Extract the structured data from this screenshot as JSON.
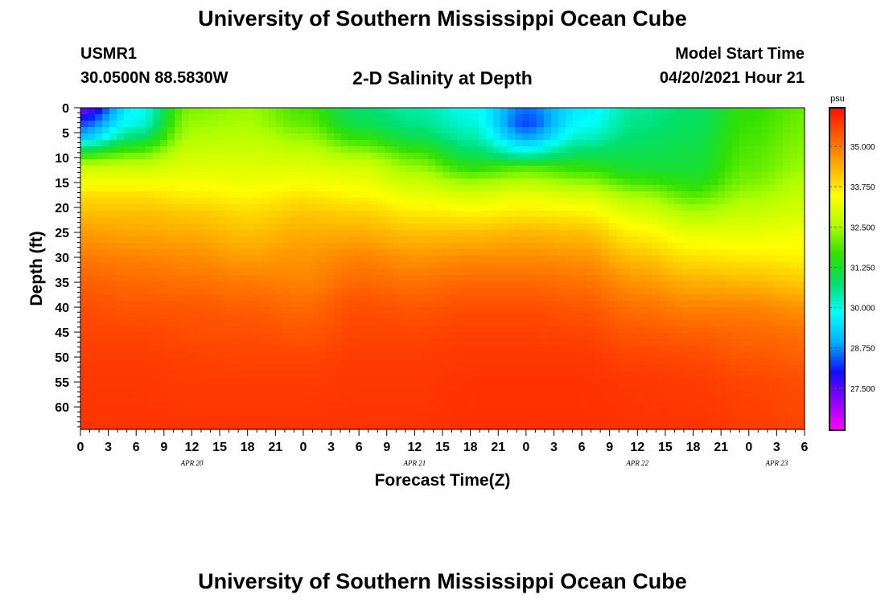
{
  "header": {
    "title": "University of Southern Mississippi Ocean Cube",
    "station_id": "USMR1",
    "station_coords": "30.0500N  88.5830W",
    "subtitle": "2-D Salinity at Depth",
    "model_start_label": "Model Start Time",
    "model_start_value": "04/20/2021 Hour 21"
  },
  "footer": {
    "title": "University of Southern Mississippi Ocean Cube"
  },
  "colors": {
    "palette": [
      "#ff00ff",
      "#9000ff",
      "#1010ff",
      "#00b0ff",
      "#00ffff",
      "#00e070",
      "#30e000",
      "#b0ff00",
      "#ffff00",
      "#ffb000",
      "#ff6000",
      "#ff1000"
    ]
  },
  "chart_data": {
    "type": "heatmap",
    "title": "2-D Salinity at Depth",
    "xlabel": "Forecast Time(Z)",
    "ylabel": "Depth (ft)",
    "x_hours_range": [
      0,
      78
    ],
    "x_tick_step_hours": 3,
    "x_tick_labels": [
      "0",
      "3",
      "6",
      "9",
      "12",
      "15",
      "18",
      "21",
      "0",
      "3",
      "6",
      "9",
      "12",
      "15",
      "18",
      "21",
      "0",
      "3",
      "6",
      "9",
      "12",
      "15",
      "18",
      "21",
      "0",
      "3",
      "6"
    ],
    "date_labels": [
      {
        "label": "APR 20",
        "hour": 12
      },
      {
        "label": "APR 21",
        "hour": 36
      },
      {
        "label": "APR 22",
        "hour": 60
      },
      {
        "label": "APR 23",
        "hour": 75
      }
    ],
    "ylim": [
      0,
      64.5
    ],
    "y_tick_labels": [
      "0",
      "5",
      "10",
      "15",
      "20",
      "25",
      "30",
      "35",
      "40",
      "45",
      "50",
      "55",
      "60"
    ],
    "y_tick_values": [
      0,
      5,
      10,
      15,
      20,
      25,
      30,
      35,
      40,
      45,
      50,
      55,
      60
    ],
    "colorbar": {
      "unit": "psu",
      "range": [
        26.2,
        36.2
      ],
      "tick_labels": [
        "27.500",
        "28.750",
        "30.000",
        "31.250",
        "32.500",
        "33.750",
        "35.000"
      ],
      "tick_values": [
        27.5,
        28.75,
        30.0,
        31.25,
        32.5,
        33.75,
        35.0
      ]
    },
    "depths": [
      0,
      3,
      6,
      9,
      12,
      15,
      18,
      21,
      25,
      30,
      35,
      40,
      45,
      50,
      55,
      64.5
    ],
    "profiles": [
      {
        "hour": 0,
        "salinity": [
          27.2,
          28.3,
          29.2,
          31.5,
          32.9,
          33.4,
          33.9,
          34.2,
          34.6,
          35.0,
          35.3,
          35.5,
          35.6,
          35.7,
          35.75,
          35.8
        ]
      },
      {
        "hour": 6,
        "salinity": [
          29.8,
          30.0,
          30.8,
          32.0,
          32.9,
          33.4,
          33.9,
          34.2,
          34.5,
          34.9,
          35.2,
          35.4,
          35.6,
          35.7,
          35.75,
          35.8
        ]
      },
      {
        "hour": 12,
        "salinity": [
          32.2,
          32.4,
          32.6,
          32.9,
          33.1,
          33.4,
          33.7,
          34.1,
          34.4,
          34.8,
          35.1,
          35.4,
          35.5,
          35.65,
          35.7,
          35.8
        ]
      },
      {
        "hour": 18,
        "salinity": [
          32.4,
          32.5,
          32.7,
          32.9,
          33.1,
          33.3,
          33.6,
          33.9,
          34.2,
          34.6,
          35.0,
          35.3,
          35.5,
          35.6,
          35.7,
          35.8
        ]
      },
      {
        "hour": 24,
        "salinity": [
          31.8,
          32.0,
          32.4,
          32.8,
          33.1,
          33.4,
          33.8,
          34.1,
          34.4,
          34.7,
          34.9,
          35.2,
          35.4,
          35.6,
          35.7,
          35.8
        ]
      },
      {
        "hour": 30,
        "salinity": [
          30.8,
          31.0,
          31.6,
          32.4,
          33.0,
          33.3,
          33.6,
          34.0,
          34.4,
          34.9,
          35.2,
          35.5,
          35.6,
          35.7,
          35.75,
          35.8
        ]
      },
      {
        "hour": 36,
        "salinity": [
          30.4,
          30.6,
          31.0,
          31.8,
          32.4,
          32.9,
          33.3,
          33.7,
          34.2,
          34.7,
          35.1,
          35.4,
          35.6,
          35.7,
          35.75,
          35.8
        ]
      },
      {
        "hour": 42,
        "salinity": [
          29.9,
          30.1,
          30.4,
          30.9,
          31.6,
          32.5,
          33.1,
          33.6,
          34.2,
          34.8,
          35.2,
          35.5,
          35.65,
          35.75,
          35.8,
          35.85
        ]
      },
      {
        "hour": 48,
        "salinity": [
          28.6,
          28.3,
          28.9,
          30.2,
          31.9,
          32.7,
          33.3,
          33.7,
          34.3,
          34.8,
          35.2,
          35.5,
          35.65,
          35.75,
          35.8,
          35.85
        ]
      },
      {
        "hour": 54,
        "salinity": [
          29.6,
          29.8,
          30.2,
          30.9,
          31.6,
          32.4,
          33.1,
          33.6,
          34.2,
          34.7,
          35.1,
          35.4,
          35.6,
          35.75,
          35.8,
          35.85
        ]
      },
      {
        "hour": 60,
        "salinity": [
          30.5,
          30.6,
          30.8,
          31.0,
          31.2,
          31.8,
          32.6,
          33.1,
          33.6,
          34.2,
          34.7,
          35.1,
          35.4,
          35.6,
          35.75,
          35.8
        ]
      },
      {
        "hour": 66,
        "salinity": [
          30.8,
          30.9,
          31.0,
          31.1,
          31.2,
          31.5,
          32.0,
          32.6,
          33.2,
          33.8,
          34.4,
          34.9,
          35.3,
          35.55,
          35.7,
          35.8
        ]
      },
      {
        "hour": 72,
        "salinity": [
          31.6,
          31.7,
          31.8,
          31.9,
          32.0,
          32.2,
          32.5,
          32.8,
          33.2,
          33.7,
          34.3,
          34.9,
          35.2,
          35.4,
          35.6,
          35.7
        ]
      },
      {
        "hour": 78,
        "salinity": [
          32.0,
          32.1,
          32.2,
          32.3,
          32.4,
          32.6,
          32.8,
          33.0,
          33.3,
          33.6,
          34.1,
          34.7,
          35.1,
          35.3,
          35.5,
          35.6
        ]
      }
    ]
  }
}
